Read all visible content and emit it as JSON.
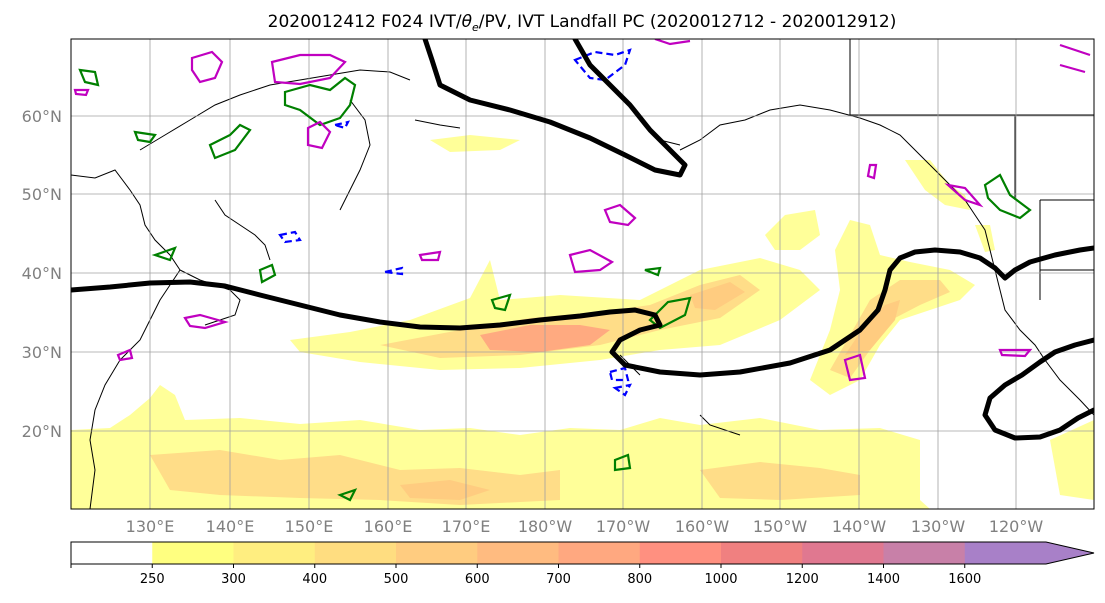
{
  "title": {
    "prefix": "2020012412 F024 IVT/",
    "theta": "θ",
    "theta_sub": "e",
    "suffix": "/PV, IVT Landfall PC (2020012712 - 2020012912)"
  },
  "lat_labels": [
    "60°N",
    "50°N",
    "40°N",
    "30°N",
    "20°N"
  ],
  "lon_labels": [
    "130°E",
    "140°E",
    "150°E",
    "160°E",
    "170°E",
    "180°W",
    "170°W",
    "160°W",
    "150°W",
    "140°W",
    "130°W",
    "120°W"
  ],
  "colorbar": {
    "ticks": [
      "250",
      "300",
      "400",
      "500",
      "600",
      "700",
      "800",
      "1000",
      "1200",
      "1400",
      "1600"
    ],
    "colors": [
      "#ffff80",
      "#ffee80",
      "#ffdd80",
      "#ffcc80",
      "#ffbb80",
      "#ffa880",
      "#ff9080",
      "#f08080",
      "#e07890",
      "#c880a8",
      "#a880c8"
    ],
    "under_color": "#ffffff"
  },
  "colors": {
    "ivt_fill_low": "#ffff99",
    "ivt_fill_mid": "#ffdd88",
    "ivt_fill_high": "#ffaa80",
    "pv_contour": "#000000",
    "theta_contour_green": "#008000",
    "magenta_contour": "#c000c0",
    "blue_contour": "#0000ff",
    "grid": "#a0a0a0"
  }
}
